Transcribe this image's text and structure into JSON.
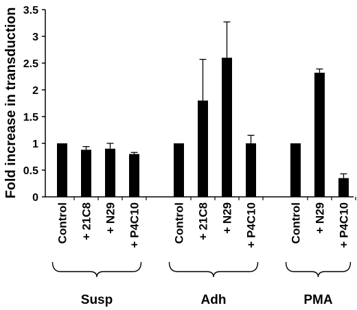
{
  "chart_data": {
    "type": "bar",
    "ylabel": "Fold increase in transduction",
    "ylim": [
      0,
      3.5
    ],
    "yticks": [
      "0",
      "0.5",
      "1",
      "1.5",
      "2",
      "2.5",
      "3",
      "3.5"
    ],
    "grid": false,
    "legend": "none",
    "bar_color": "#000000",
    "groups": [
      {
        "name": "Susp",
        "categories": [
          "Control",
          "+ 21C8",
          "+ N29",
          "+ P4C10"
        ],
        "values": [
          1.0,
          0.88,
          0.9,
          0.8
        ],
        "errors": [
          0.0,
          0.06,
          0.1,
          0.03
        ]
      },
      {
        "name": "Adh",
        "categories": [
          "Control",
          "+ 21C8",
          "+ N29",
          "+ P4C10"
        ],
        "values": [
          1.0,
          1.8,
          2.6,
          1.0
        ],
        "errors": [
          0.0,
          0.77,
          0.67,
          0.15
        ]
      },
      {
        "name": "PMA",
        "categories": [
          "Control",
          "+ N29",
          "+ P4C10"
        ],
        "values": [
          1.0,
          2.32,
          0.35
        ],
        "errors": [
          0.0,
          0.07,
          0.08
        ]
      }
    ]
  }
}
